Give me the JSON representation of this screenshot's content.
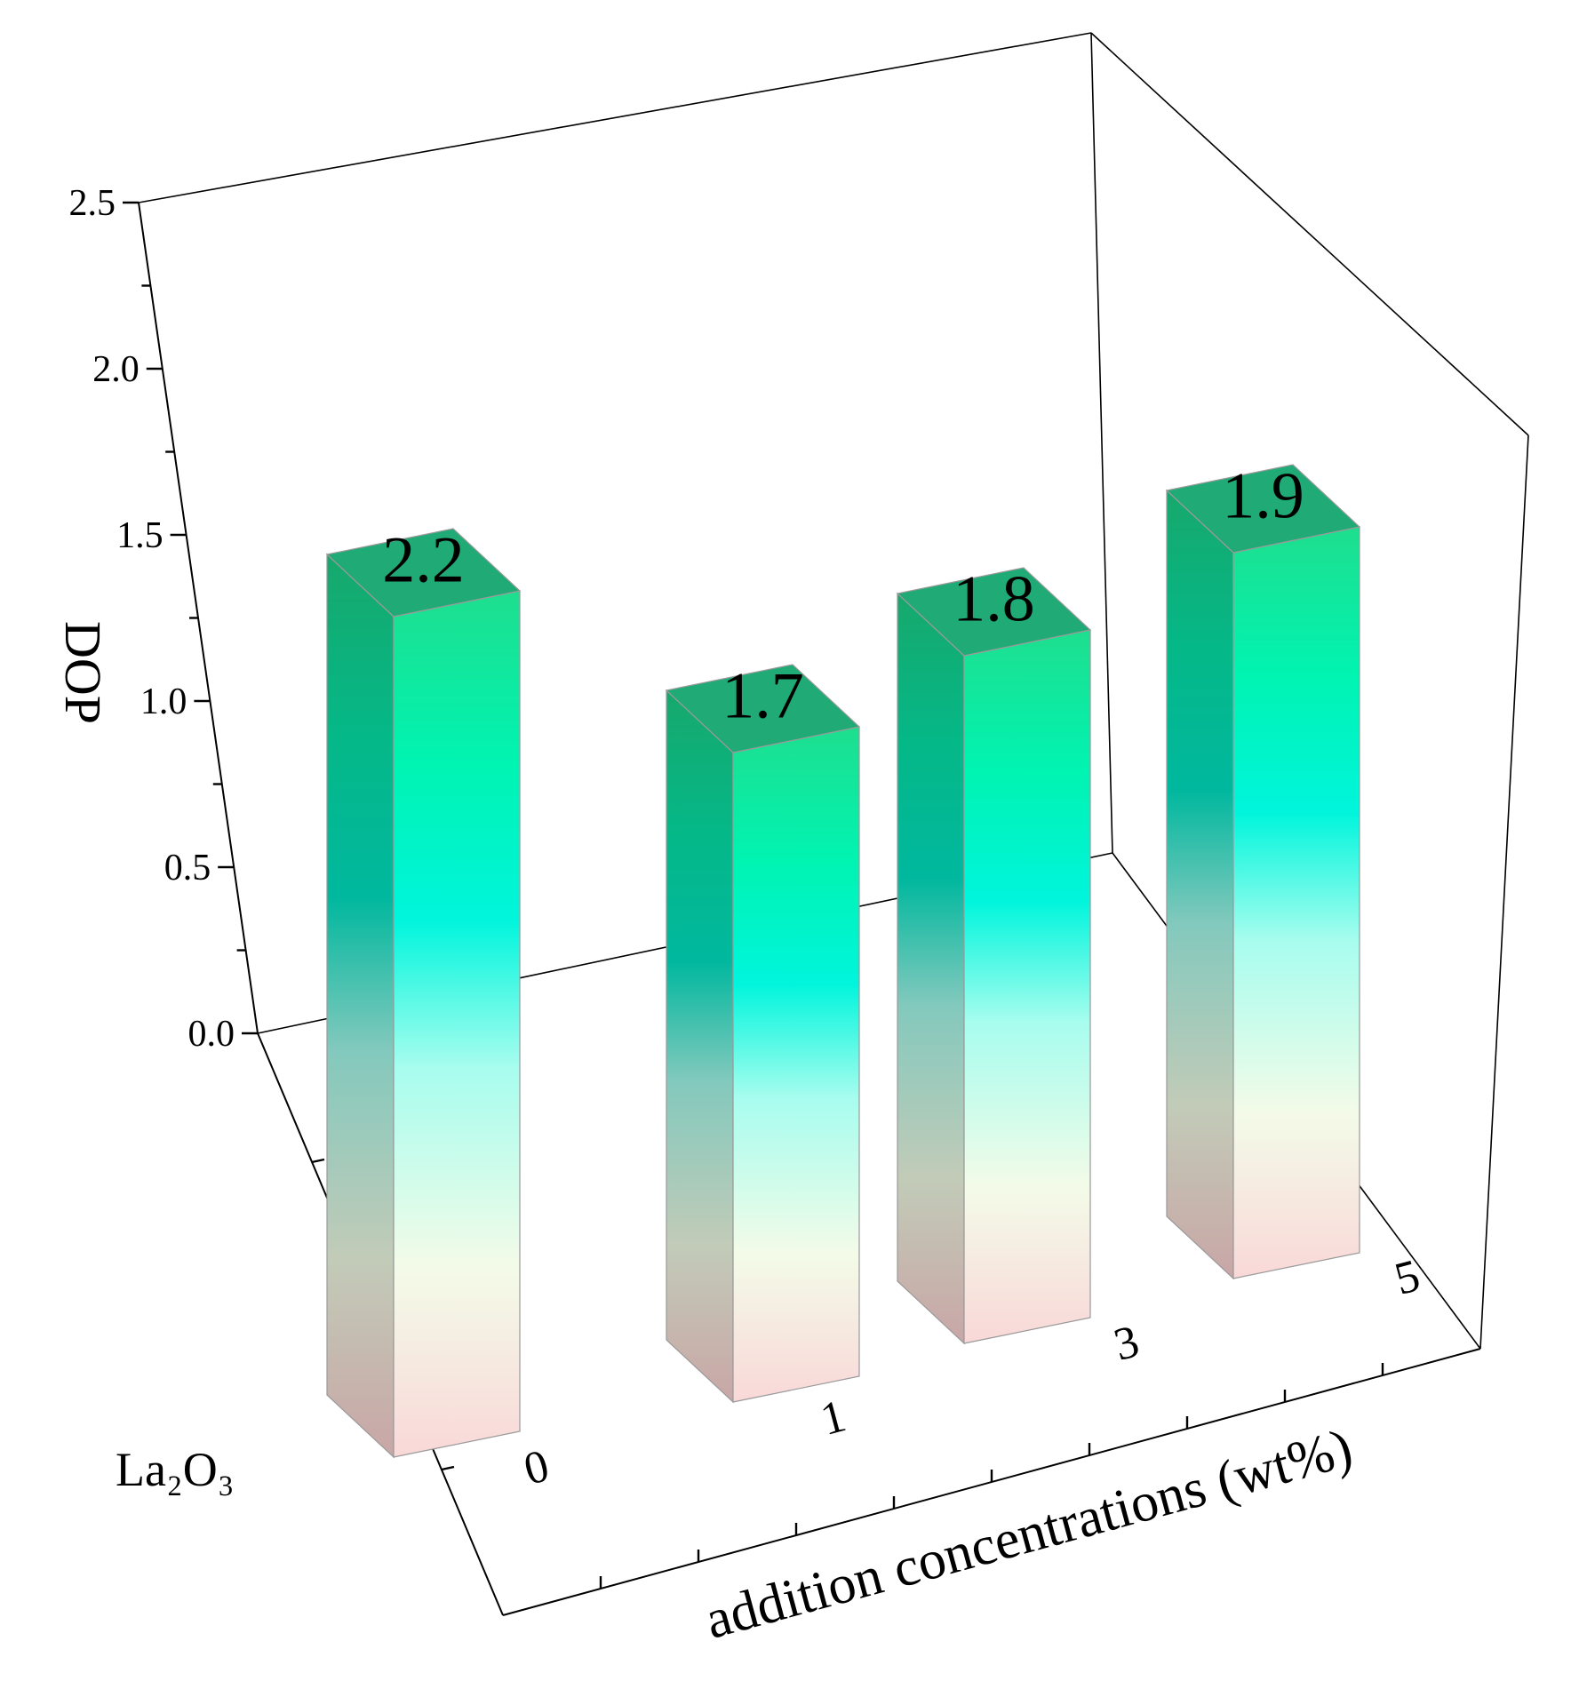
{
  "chart_data": {
    "type": "bar",
    "projection": "3d",
    "categories": [
      "0",
      "1",
      "3",
      "5"
    ],
    "values": [
      2.2,
      1.7,
      1.8,
      1.9
    ],
    "data_labels": [
      "2.2",
      "1.7",
      "1.8",
      "1.9"
    ],
    "ylabel": "DOP",
    "ylim": [
      0.0,
      2.5
    ],
    "yticks": [
      "0.0",
      "0.5",
      "1.0",
      "1.5",
      "2.0",
      "2.5"
    ],
    "xlabel": "addition concentrations (wt%)",
    "depth_label": "La₂O₃",
    "colors": {
      "top_face": "#1faa76",
      "high": "#00f5b0",
      "mid": "#00f0d4",
      "low": "#e2ffe6",
      "base": "#f9d8d8"
    }
  }
}
